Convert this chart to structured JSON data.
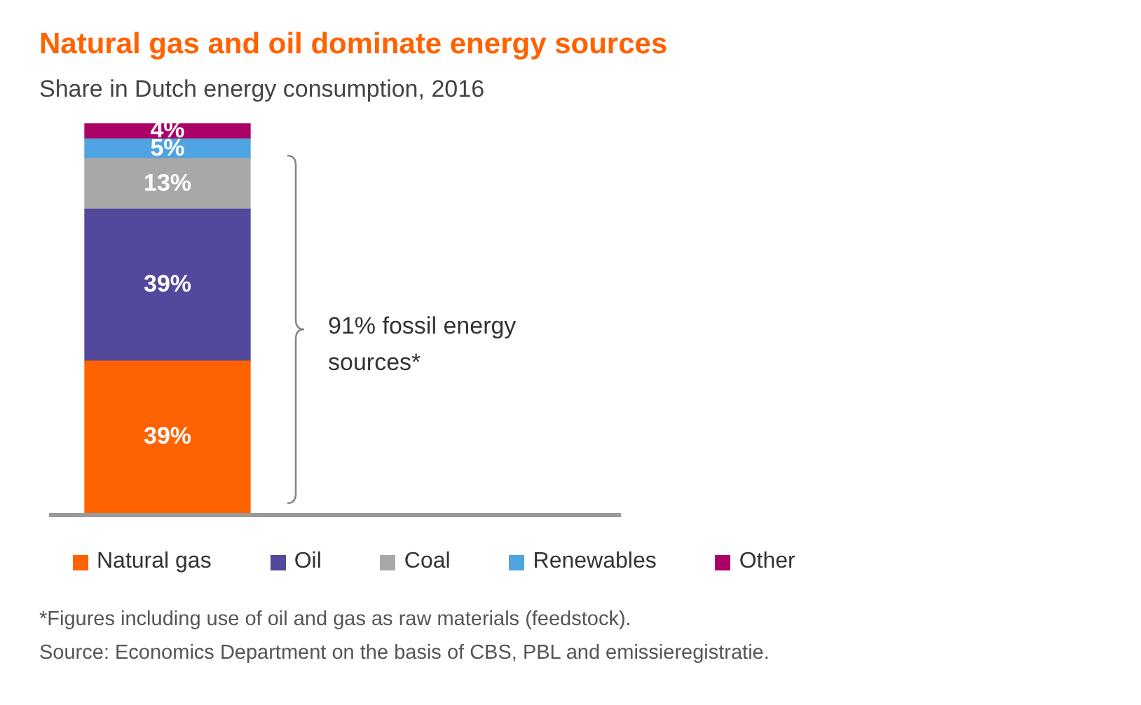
{
  "chart_data": {
    "type": "bar",
    "stacked": true,
    "title": "Natural gas and oil dominate energy sources",
    "subtitle": "Share in Dutch energy consumption, 2016",
    "categories": [
      null
    ],
    "legend": "bottom",
    "series": [
      {
        "name": "Natural gas",
        "color": "#ff6200",
        "values": [
          39
        ],
        "value_labels": [
          "39%"
        ]
      },
      {
        "name": "Oil",
        "color": "#52489c",
        "values": [
          39
        ],
        "value_labels": [
          "39%"
        ]
      },
      {
        "name": "Coal",
        "color": "#a8a8a8",
        "values": [
          13
        ],
        "value_labels": [
          "13%"
        ]
      },
      {
        "name": "Renewables",
        "color": "#4fa3e0",
        "values": [
          5
        ],
        "value_labels": [
          "5%"
        ]
      },
      {
        "name": "Other",
        "color": "#ab0066",
        "values": [
          4
        ],
        "value_labels": [
          "4%"
        ]
      }
    ],
    "annotations": [
      "91% fossil energy sources*",
      "*Figures including use of oil and gas as raw materials (feedstock).",
      "Source: Economics Department on the basis of CBS, PBL and emissieregistratie."
    ]
  }
}
